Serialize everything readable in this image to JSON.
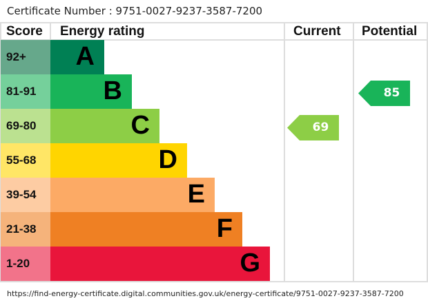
{
  "certificate_line": "Certificate Number : 9751-0027-9237-3587-7200",
  "url": "https://find-energy-certificate.digital.communities.gov.uk/energy-certificate/9751-0027-9237-3587-7200",
  "chart_data": {
    "type": "bar",
    "headers": {
      "score": "Score",
      "rating": "Energy rating",
      "current": "Current",
      "potential": "Potential"
    },
    "bands": [
      {
        "letter": "A",
        "range": "92+",
        "color": "#008054",
        "score_color": "#66a88b"
      },
      {
        "letter": "B",
        "range": "81-91",
        "color": "#19b459",
        "score_color": "#75d09b"
      },
      {
        "letter": "C",
        "range": "69-80",
        "color": "#8dce46",
        "score_color": "#bbe190"
      },
      {
        "letter": "D",
        "range": "55-68",
        "color": "#ffd500",
        "score_color": "#ffe666"
      },
      {
        "letter": "E",
        "range": "39-54",
        "color": "#fcaa65",
        "score_color": "#fdcca3"
      },
      {
        "letter": "F",
        "range": "21-38",
        "color": "#ef8023",
        "score_color": "#f5b37b"
      },
      {
        "letter": "G",
        "range": "1-20",
        "color": "#e9153b",
        "score_color": "#f2738a"
      }
    ],
    "current": {
      "value": 69,
      "band": "C",
      "color": "#8dce46"
    },
    "potential": {
      "value": 85,
      "band": "B",
      "color": "#19b459"
    }
  }
}
